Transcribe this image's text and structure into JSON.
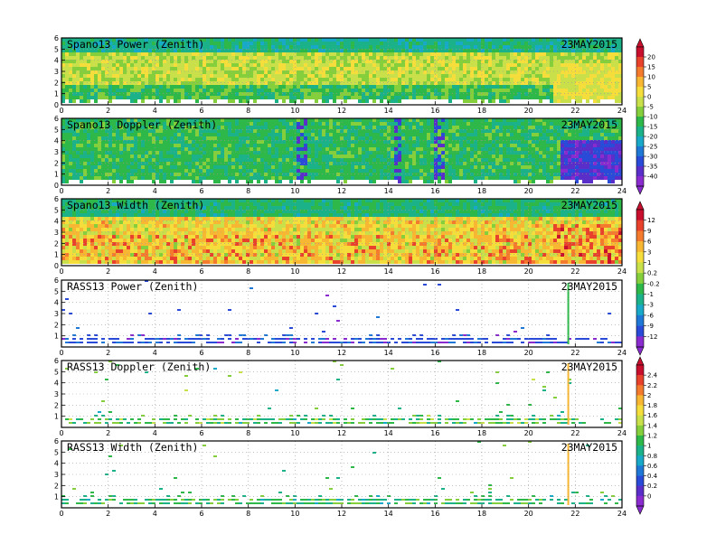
{
  "chart_data": [
    {
      "type": "heatmap",
      "title": "Spano13 Power (Zenith)",
      "date": "23MAY2015",
      "x_ticks": [
        "0",
        "2",
        "4",
        "6",
        "8",
        "10",
        "12",
        "14",
        "16",
        "18",
        "20",
        "22",
        "24"
      ],
      "y_ticks": [
        "0",
        "1",
        "2",
        "3",
        "4",
        "5",
        "6"
      ],
      "xlim": [
        0,
        24
      ],
      "ylim": [
        0,
        6
      ],
      "colorbar_group": 0
    },
    {
      "type": "heatmap",
      "title": "Spano13 Doppler (Zenith)",
      "date": "23MAY2015",
      "x_ticks": [
        "0",
        "2",
        "4",
        "6",
        "8",
        "10",
        "12",
        "14",
        "16",
        "18",
        "20",
        "22",
        "24"
      ],
      "y_ticks": [
        "0",
        "1",
        "2",
        "3",
        "4",
        "5",
        "6"
      ],
      "xlim": [
        0,
        24
      ],
      "ylim": [
        0,
        6
      ],
      "colorbar_group": 0
    },
    {
      "type": "heatmap",
      "title": "Spano13 Width (Zenith)",
      "date": "23MAY2015",
      "x_ticks": [
        "0",
        "2",
        "4",
        "6",
        "8",
        "10",
        "12",
        "14",
        "16",
        "18",
        "20",
        "22",
        "24"
      ],
      "y_ticks": [
        "0",
        "1",
        "2",
        "3",
        "4",
        "5",
        "6"
      ],
      "xlim": [
        0,
        24
      ],
      "ylim": [
        0,
        6
      ],
      "colorbar_group": 1
    },
    {
      "type": "heatmap",
      "title": "RASS13 Power (Zenith)",
      "date": "23MAY2015",
      "x_ticks": [
        "0",
        "2",
        "4",
        "6",
        "8",
        "10",
        "12",
        "14",
        "16",
        "18",
        "20",
        "22",
        "24"
      ],
      "y_ticks": [
        "1",
        "2",
        "3",
        "4",
        "5",
        "6"
      ],
      "xlim": [
        0,
        24
      ],
      "ylim": [
        0,
        6
      ],
      "colorbar_group": 1
    },
    {
      "type": "heatmap",
      "title": "RASS13 Doppler (Zenith)",
      "date": "23MAY2015",
      "x_ticks": [
        "0",
        "2",
        "4",
        "6",
        "8",
        "10",
        "12",
        "14",
        "16",
        "18",
        "20",
        "22",
        "24"
      ],
      "y_ticks": [
        "1",
        "2",
        "3",
        "4",
        "5",
        "6"
      ],
      "xlim": [
        0,
        24
      ],
      "ylim": [
        0,
        6
      ],
      "colorbar_group": 2
    },
    {
      "type": "heatmap",
      "title": "RASS13 Width (Zenith)",
      "date": "23MAY2015",
      "x_ticks": [
        "0",
        "2",
        "4",
        "6",
        "8",
        "10",
        "12",
        "14",
        "16",
        "18",
        "20",
        "22",
        "24"
      ],
      "y_ticks": [
        "1",
        "2",
        "3",
        "4",
        "5",
        "6"
      ],
      "xlim": [
        0,
        24
      ],
      "ylim": [
        0,
        6
      ],
      "colorbar_group": 2
    }
  ],
  "colorbars": [
    {
      "labels": [
        "20",
        "15",
        "10",
        "5",
        "0",
        "-5",
        "-10",
        "-15",
        "-20",
        "-25",
        "-30",
        "-35",
        "-40"
      ],
      "colors": [
        "#c8102e",
        "#e8422c",
        "#f47a2e",
        "#f7b733",
        "#f5dd3c",
        "#c9e04a",
        "#86cf3c",
        "#2fb84a",
        "#1bb28a",
        "#18a9c8",
        "#1f78d6",
        "#2a4bd7",
        "#5a2fc9",
        "#8a2bd0"
      ]
    },
    {
      "labels": [
        "12",
        "9",
        "6",
        "3",
        "1",
        "0.2",
        "-0.2",
        "-1",
        "-3",
        "-6",
        "-9",
        "-12"
      ],
      "colors": [
        "#c8102e",
        "#e8422c",
        "#f47a2e",
        "#f7b733",
        "#f5dd3c",
        "#c9e04a",
        "#86cf3c",
        "#2fb84a",
        "#1bb28a",
        "#18a9c8",
        "#1f78d6",
        "#2a4bd7",
        "#8a2bd0"
      ]
    },
    {
      "labels": [
        "2.4",
        "2.2",
        "2",
        "1.8",
        "1.6",
        "1.4",
        "1.2",
        "1",
        "0.8",
        "0.6",
        "0.4",
        "0.2",
        "0"
      ],
      "colors": [
        "#c8102e",
        "#e8422c",
        "#f47a2e",
        "#f7b733",
        "#f5dd3c",
        "#c9e04a",
        "#86cf3c",
        "#2fb84a",
        "#1bb28a",
        "#18a9c8",
        "#1f78d6",
        "#2a4bd7",
        "#5a2fc9",
        "#8a2bd0"
      ]
    }
  ]
}
